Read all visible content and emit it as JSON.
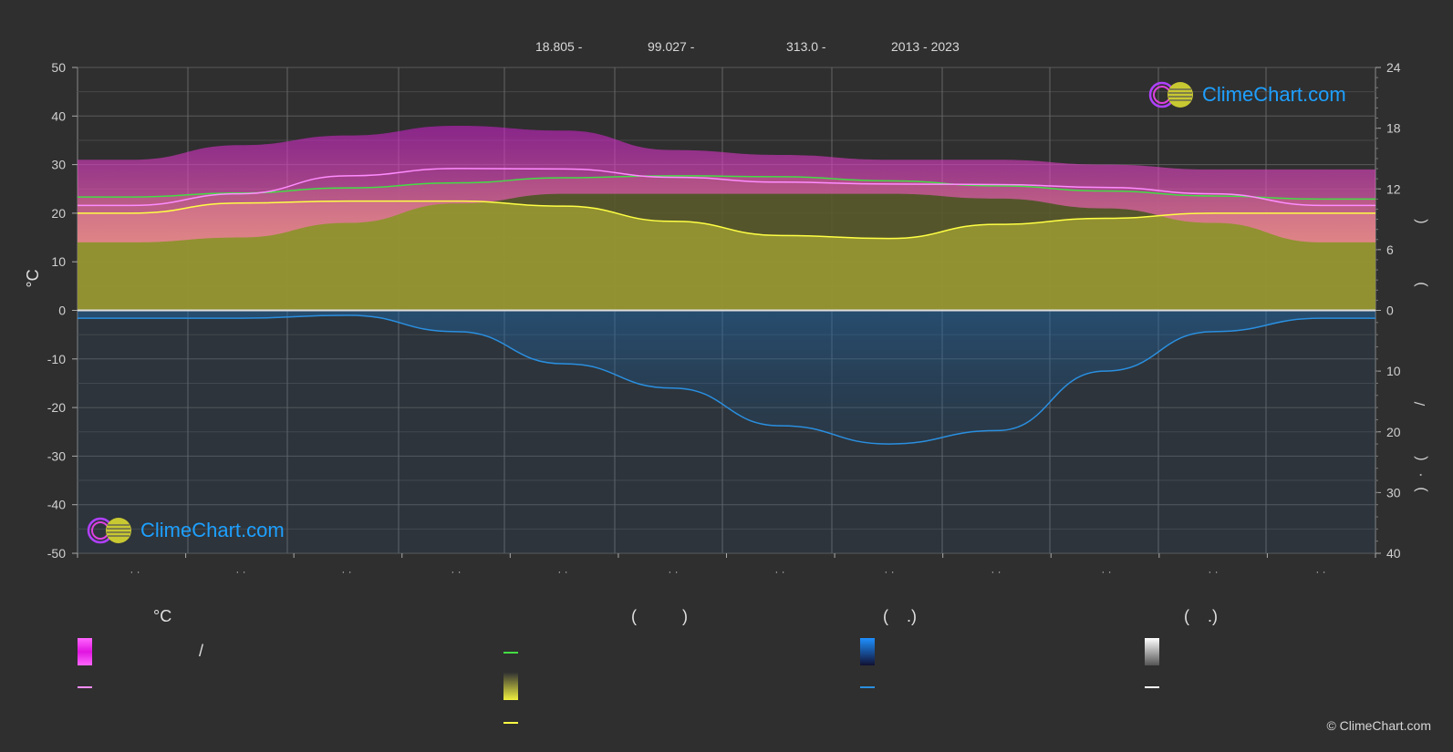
{
  "header": {
    "lat": "18.805 -",
    "lon": "99.027 -",
    "elev": "313.0 -",
    "years": "2013 - 2023"
  },
  "logo": {
    "text": "ClimeChart.com"
  },
  "copyright": "© ClimeChart.com",
  "legend": {
    "col1_head": "°C",
    "col1_slash": "/",
    "col2_head": "(          )",
    "col3_head": "(    .)",
    "col4_head": "(    .)"
  },
  "colors": {
    "bg": "#2f2f2f",
    "temp_band": "#d21ed2",
    "sunshine": "#c8c83c",
    "precip": "#1e6eb4",
    "avg_temp_line": "#ff8cff",
    "daylight_line": "#44dd44",
    "sunshine_line": "#ffff44",
    "precip_line": "#2a8fe0",
    "logo_text": "#1ea0ff"
  },
  "chart_data": {
    "type": "area",
    "left_axis": {
      "label": "°C",
      "ticks": [
        50,
        40,
        30,
        20,
        10,
        0,
        -10,
        -20,
        -30,
        -40,
        -50
      ],
      "range": [
        -50,
        50
      ]
    },
    "right_axis_top": {
      "ticks": [
        24,
        18,
        12,
        6,
        0
      ],
      "range": [
        0,
        24
      ]
    },
    "right_axis_bottom": {
      "ticks": [
        0,
        10,
        20,
        30,
        40
      ],
      "range": [
        0,
        40
      ]
    },
    "right_axis_label_glyphs": [
      "(",
      ")",
      "/",
      "(",
      "·",
      ")"
    ],
    "x_tick_labels": [
      "· ·",
      "· ·",
      "· ·",
      "· ·",
      "· ·",
      "· ·",
      "· ·",
      "· ·",
      "· ·",
      "· ·",
      "· ·",
      "· ·"
    ],
    "months": 12,
    "series": [
      {
        "key": "avg_temp",
        "values": [
          21.6,
          24.0,
          27.7,
          29.2,
          29.1,
          27.4,
          26.4,
          26.0,
          25.9,
          25.3,
          24.0,
          21.6
        ]
      },
      {
        "key": "daylight_hours",
        "values": [
          11.2,
          11.6,
          12.1,
          12.6,
          13.1,
          13.3,
          13.2,
          12.8,
          12.3,
          11.8,
          11.3,
          11.0
        ]
      },
      {
        "key": "sunshine_hours",
        "values": [
          9.6,
          10.6,
          10.8,
          10.8,
          10.3,
          8.8,
          7.4,
          7.1,
          8.5,
          9.1,
          9.6,
          9.6
        ]
      },
      {
        "key": "precipitation_mm",
        "values": [
          1.3,
          1.3,
          0.8,
          3.5,
          8.8,
          12.8,
          19.0,
          22.0,
          19.8,
          10.0,
          3.5,
          1.3
        ]
      }
    ],
    "temp_band": {
      "max": [
        31,
        34,
        36,
        38,
        37,
        33,
        32,
        31,
        31,
        30,
        29,
        29
      ],
      "min": [
        14,
        15,
        18,
        22,
        24,
        24,
        24,
        24,
        23,
        21,
        18,
        14
      ]
    }
  }
}
